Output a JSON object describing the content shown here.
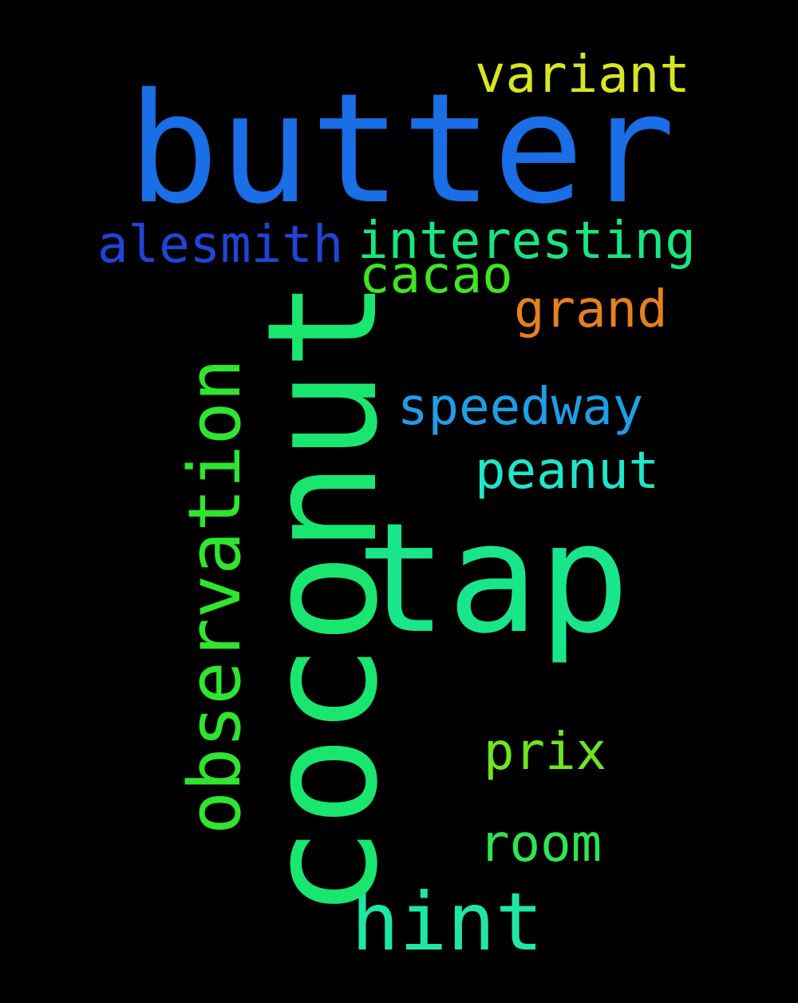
{
  "background": "#000000",
  "words": {
    "butter": {
      "text": "butter",
      "color": "#1a6ee6"
    },
    "coconut": {
      "text": "coconut",
      "color": "#19e66e"
    },
    "tap": {
      "text": "tap",
      "color": "#19e68a"
    },
    "variant": {
      "text": "variant",
      "color": "#d8e61f"
    },
    "alesmith": {
      "text": "alesmith",
      "color": "#1f45d8"
    },
    "interesting": {
      "text": "interesting",
      "color": "#19e680"
    },
    "cacao": {
      "text": "cacao",
      "color": "#3ee61f"
    },
    "grand": {
      "text": "grand",
      "color": "#e6801f"
    },
    "observation": {
      "text": "observation",
      "color": "#2ee62e"
    },
    "speedway": {
      "text": "speedway",
      "color": "#1f9ee6"
    },
    "peanut": {
      "text": "peanut",
      "color": "#1fe6c8"
    },
    "prix": {
      "text": "prix",
      "color": "#6ee61f"
    },
    "room": {
      "text": "room",
      "color": "#2ee652"
    },
    "hint": {
      "text": "hint",
      "color": "#1fe6a6"
    }
  }
}
